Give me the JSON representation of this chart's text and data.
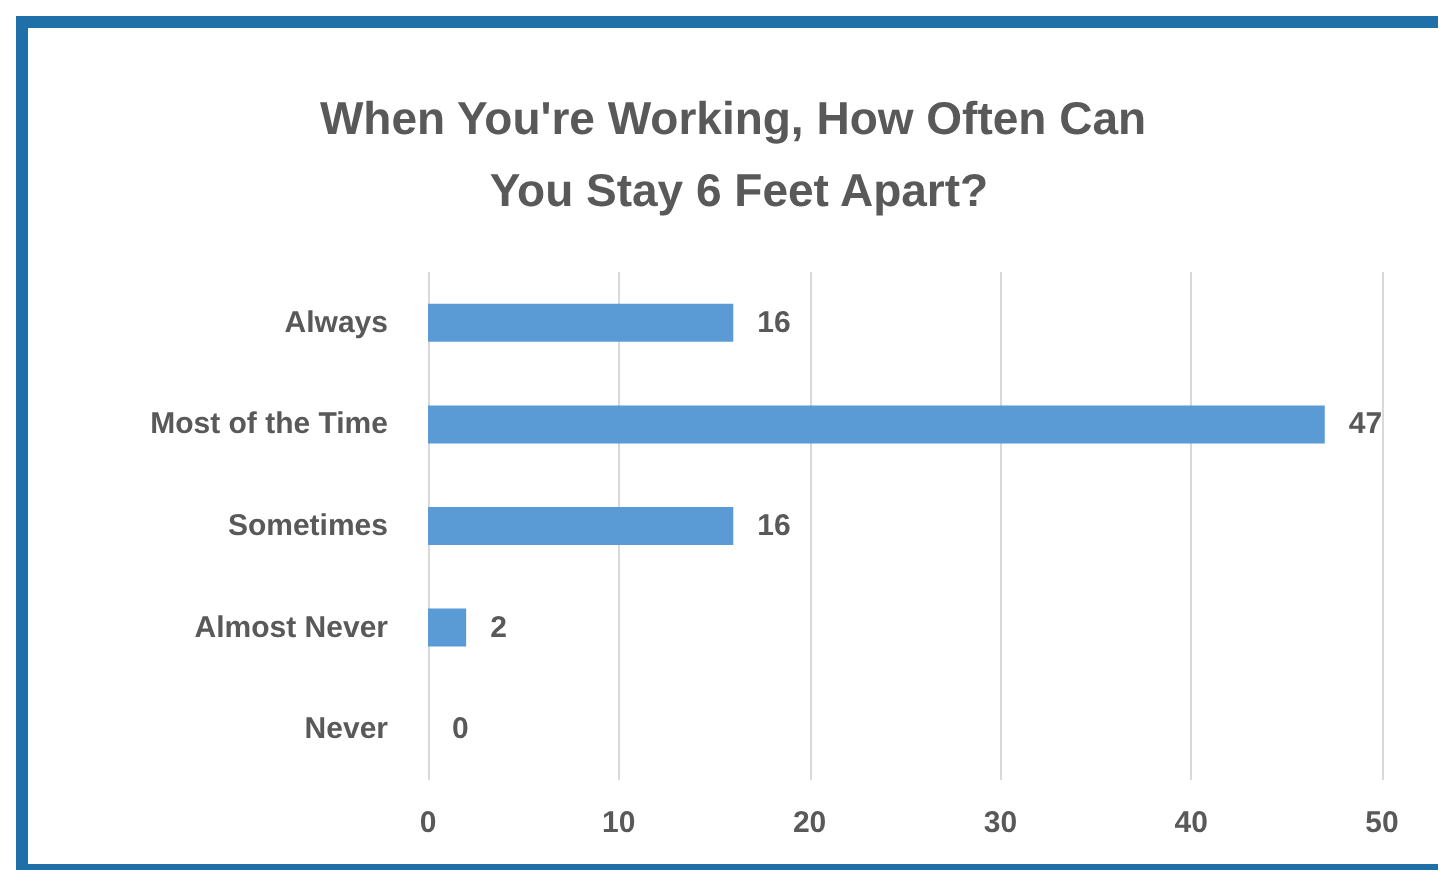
{
  "chart_data": {
    "type": "bar",
    "orientation": "horizontal",
    "title": "When You're Working, How Often Can You Stay 6 Feet Apart?",
    "categories": [
      "Always",
      "Most of the Time",
      "Sometimes",
      "Almost Never",
      "Never"
    ],
    "values": [
      16,
      47,
      16,
      2,
      0
    ],
    "color": "#5b9bd5",
    "xlim": [
      0,
      50
    ],
    "xticks": [
      0,
      10,
      20,
      30,
      40,
      50
    ],
    "grid": "x",
    "data_labels": true
  }
}
